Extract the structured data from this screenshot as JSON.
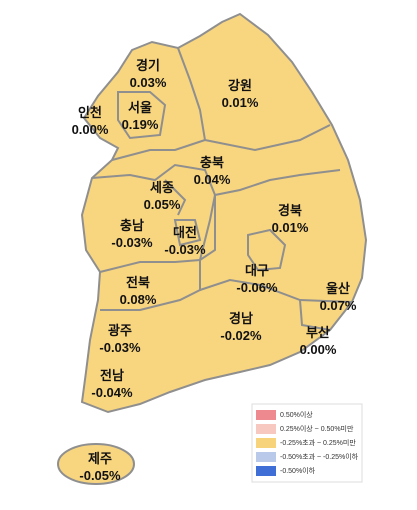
{
  "regions": [
    {
      "name": "경기",
      "change": "0.03%"
    },
    {
      "name": "강원",
      "change": "0.01%"
    },
    {
      "name": "인천",
      "change": "0.00%"
    },
    {
      "name": "서울",
      "change": "0.19%"
    },
    {
      "name": "충북",
      "change": "0.04%"
    },
    {
      "name": "세종",
      "change": "0.05%"
    },
    {
      "name": "충남",
      "change": "-0.03%"
    },
    {
      "name": "대전",
      "change": "-0.03%"
    },
    {
      "name": "경북",
      "change": "0.01%"
    },
    {
      "name": "대구",
      "change": "-0.06%"
    },
    {
      "name": "울산",
      "change": "0.07%"
    },
    {
      "name": "전북",
      "change": "0.08%"
    },
    {
      "name": "경남",
      "change": "-0.02%"
    },
    {
      "name": "부산",
      "change": "0.00%"
    },
    {
      "name": "광주",
      "change": "-0.03%"
    },
    {
      "name": "전남",
      "change": "-0.04%"
    },
    {
      "name": "제주",
      "change": "-0.05%"
    }
  ],
  "legend": [
    {
      "label": "0.50%이상",
      "color": "#ee8a8f"
    },
    {
      "label": "0.25%이상 ~ 0.50%미만",
      "color": "#f7c8c0"
    },
    {
      "label": "-0.25%초과 ~ 0.25%미만",
      "color": "#f7d47c"
    },
    {
      "label": "-0.50%초과 ~ -0.25%이하",
      "color": "#b9c9ea"
    },
    {
      "label": "-0.50%이하",
      "color": "#3f6fd6"
    }
  ]
}
